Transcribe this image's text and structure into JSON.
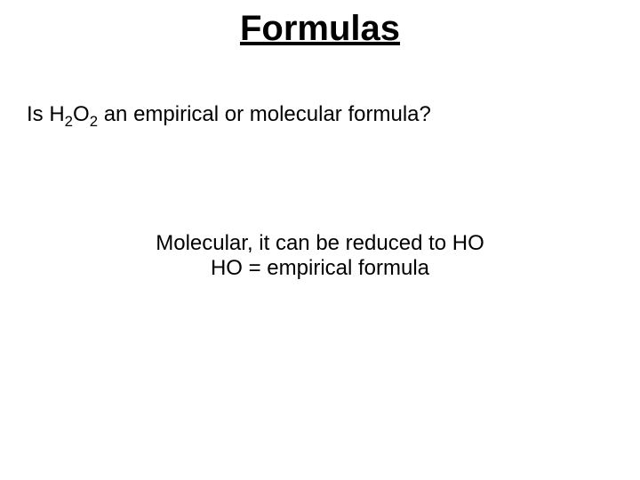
{
  "slide": {
    "background_color": "#ffffff",
    "text_color": "#000000",
    "font_family": "Comic Sans MS",
    "title": {
      "text": "Formulas",
      "fontsize": 40,
      "bold": true,
      "underline": true,
      "align": "center"
    },
    "question": {
      "prefix": "Is H",
      "sub1": "2",
      "mid": "O",
      "sub2": "2",
      "suffix": " an empirical or molecular formula?",
      "fontsize": 24
    },
    "answer": {
      "line1": "Molecular, it can be reduced to HO",
      "line2": "HO = empirical formula",
      "fontsize": 24,
      "align": "center"
    }
  }
}
